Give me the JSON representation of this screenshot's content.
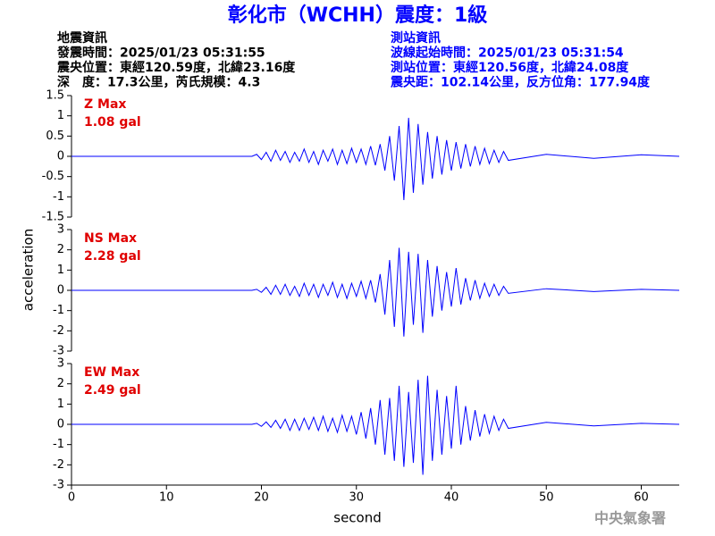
{
  "header": {
    "title": "彰化市（WCHH）震度：1級",
    "left": [
      "地震資訊",
      "發震時間：2025/01/23 05:31:55",
      "震央位置：東經120.59度，北緯23.16度",
      "深　度：17.3公里，芮氏規模：4.3"
    ],
    "right": [
      "測站資訊",
      "波線起始時間：2025/01/23 05:31:54",
      "測站位置：東經120.56度，北緯24.08度",
      "震央距：102.14公里，反方位角：177.94度"
    ],
    "y_label": "acceleration",
    "x_label": "second",
    "credit": "中央氣象署",
    "xlim": [
      0,
      64
    ],
    "xticks": [
      0,
      10,
      20,
      30,
      40,
      50,
      60
    ]
  },
  "chart_data": [
    {
      "type": "line",
      "color": "#0000ff",
      "annotations": [
        "Z Max",
        "1.08 gal"
      ],
      "ylim": [
        -1.5,
        1.5
      ],
      "yticks": [
        -1.5,
        -1,
        -0.5,
        0,
        0.5,
        1,
        1.5
      ],
      "x": [
        0,
        10,
        19,
        19.5,
        20,
        20.5,
        21,
        21.5,
        22,
        22.5,
        23,
        23.5,
        24,
        24.5,
        25,
        25.5,
        26,
        26.5,
        27,
        27.5,
        28,
        28.5,
        29,
        29.5,
        30,
        30.5,
        31,
        31.5,
        32,
        32.5,
        33,
        33.5,
        34,
        34.5,
        35,
        35.5,
        36,
        36.5,
        37,
        37.5,
        38,
        38.5,
        39,
        39.5,
        40,
        40.5,
        41,
        41.5,
        42,
        42.5,
        43,
        43.5,
        44,
        44.5,
        45,
        45.5,
        46,
        50,
        55,
        60,
        64
      ],
      "values": [
        0,
        0,
        0,
        0.05,
        -0.08,
        0.1,
        -0.12,
        0.15,
        -0.1,
        0.12,
        -0.15,
        0.1,
        -0.12,
        0.18,
        -0.15,
        0.12,
        -0.2,
        0.15,
        -0.12,
        0.18,
        -0.2,
        0.15,
        -0.18,
        0.2,
        -0.15,
        0.18,
        -0.2,
        0.25,
        -0.22,
        0.3,
        -0.35,
        0.5,
        -0.6,
        0.75,
        -1.08,
        0.95,
        -0.9,
        0.8,
        -0.7,
        0.6,
        -0.55,
        0.5,
        -0.45,
        0.4,
        -0.35,
        0.35,
        -0.3,
        0.3,
        -0.25,
        0.25,
        -0.2,
        0.2,
        -0.18,
        0.15,
        -0.15,
        0.12,
        -0.1,
        0.05,
        -0.05,
        0.04,
        0
      ]
    },
    {
      "type": "line",
      "color": "#0000ff",
      "annotations": [
        "NS Max",
        "2.28 gal"
      ],
      "ylim": [
        -3,
        3
      ],
      "yticks": [
        -3,
        -2,
        -1,
        0,
        1,
        2,
        3
      ],
      "x": [
        0,
        10,
        19,
        19.5,
        20,
        20.5,
        21,
        21.5,
        22,
        22.5,
        23,
        23.5,
        24,
        24.5,
        25,
        25.5,
        26,
        26.5,
        27,
        27.5,
        28,
        28.5,
        29,
        29.5,
        30,
        30.5,
        31,
        31.5,
        32,
        32.5,
        33,
        33.5,
        34,
        34.5,
        35,
        35.5,
        36,
        36.5,
        37,
        37.5,
        38,
        38.5,
        39,
        39.5,
        40,
        40.5,
        41,
        41.5,
        42,
        42.5,
        43,
        43.5,
        44,
        44.5,
        45,
        45.5,
        46,
        50,
        55,
        60,
        64
      ],
      "values": [
        0,
        0,
        0,
        0.05,
        -0.1,
        0.15,
        -0.2,
        0.25,
        -0.2,
        0.3,
        -0.25,
        0.2,
        -0.3,
        0.35,
        -0.25,
        0.3,
        -0.35,
        0.3,
        -0.25,
        0.4,
        -0.35,
        0.3,
        -0.4,
        0.35,
        -0.3,
        0.45,
        -0.4,
        0.5,
        -0.6,
        0.8,
        -1.2,
        1.5,
        -1.8,
        2.1,
        -2.28,
        1.9,
        -1.7,
        1.8,
        -2.1,
        1.5,
        -1.3,
        1.2,
        -1,
        0.9,
        -0.8,
        1.1,
        -0.7,
        0.6,
        -0.5,
        0.5,
        -0.4,
        0.35,
        -0.3,
        0.3,
        -0.25,
        0.2,
        -0.15,
        0.08,
        -0.06,
        0.05,
        0
      ]
    },
    {
      "type": "line",
      "color": "#0000ff",
      "annotations": [
        "EW Max",
        "2.49 gal"
      ],
      "ylim": [
        -3,
        3
      ],
      "yticks": [
        -3,
        -2,
        -1,
        0,
        1,
        2,
        3
      ],
      "x": [
        0,
        10,
        19,
        19.5,
        20,
        20.5,
        21,
        21.5,
        22,
        22.5,
        23,
        23.5,
        24,
        24.5,
        25,
        25.5,
        26,
        26.5,
        27,
        27.5,
        28,
        28.5,
        29,
        29.5,
        30,
        30.5,
        31,
        31.5,
        32,
        32.5,
        33,
        33.5,
        34,
        34.5,
        35,
        35.5,
        36,
        36.5,
        37,
        37.5,
        38,
        38.5,
        39,
        39.5,
        40,
        40.5,
        41,
        41.5,
        42,
        42.5,
        43,
        43.5,
        44,
        44.5,
        45,
        45.5,
        46,
        50,
        55,
        60,
        64
      ],
      "values": [
        0,
        0,
        0,
        0.05,
        -0.1,
        0.12,
        -0.15,
        0.2,
        -0.2,
        0.25,
        -0.3,
        0.25,
        -0.3,
        0.3,
        -0.25,
        0.35,
        -0.3,
        0.4,
        -0.35,
        0.3,
        -0.4,
        0.45,
        -0.35,
        0.4,
        -0.5,
        0.6,
        -0.7,
        0.8,
        -1,
        1.2,
        -1.5,
        1.3,
        -1.8,
        1.9,
        -2.1,
        1.6,
        -1.9,
        2.2,
        -2.49,
        2.4,
        -1.8,
        1.7,
        -1.5,
        1.4,
        -1.2,
        1.9,
        -1,
        0.9,
        -0.8,
        0.7,
        -0.6,
        0.5,
        -0.45,
        0.4,
        -0.3,
        0.25,
        -0.2,
        0.1,
        -0.08,
        0.05,
        0
      ]
    }
  ]
}
